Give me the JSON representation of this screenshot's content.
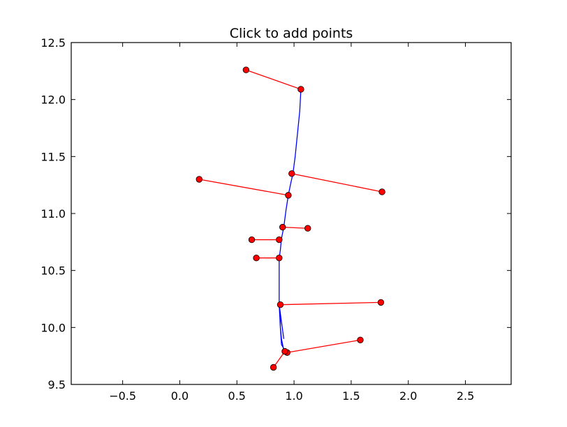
{
  "chart_data": {
    "type": "line",
    "title": "Click to add points",
    "xlabel": "",
    "ylabel": "",
    "xlim": [
      -0.95,
      2.9
    ],
    "ylim": [
      9.5,
      12.5
    ],
    "grid": false,
    "xticks": [
      -0.5,
      0.0,
      0.5,
      1.0,
      1.5,
      2.0,
      2.5
    ],
    "xtick_labels": [
      "−0.5",
      "0.0",
      "0.5",
      "1.0",
      "1.5",
      "2.0",
      "2.5"
    ],
    "yticks": [
      9.5,
      10.0,
      10.5,
      11.0,
      11.5,
      12.0,
      12.5
    ],
    "ytick_labels": [
      "9.5",
      "10.0",
      "10.5",
      "11.0",
      "11.5",
      "12.0",
      "12.5"
    ],
    "colors": {
      "curve": "#0000ff",
      "segments": "#ff0000",
      "marker_fill": "#ff0000",
      "marker_edge": "#000000"
    },
    "curve": {
      "x": [
        1.06,
        1.05,
        1.03,
        1.01,
        0.99,
        0.97,
        0.95,
        0.93,
        0.91,
        0.89,
        0.88,
        0.87,
        0.87,
        0.87,
        0.87,
        0.88,
        0.88,
        0.89,
        0.91,
        0.93,
        0.89,
        0.88,
        0.87,
        0.89,
        0.91
      ],
      "y": [
        12.09,
        11.9,
        11.7,
        11.5,
        11.35,
        11.26,
        11.16,
        11.03,
        10.88,
        10.78,
        10.68,
        10.61,
        10.45,
        10.3,
        10.2,
        10.1,
        10.0,
        9.9,
        9.8,
        9.78,
        9.85,
        10.0,
        10.2,
        10.05,
        9.9
      ]
    },
    "segments": [
      {
        "from": [
          1.06,
          12.09
        ],
        "to": [
          0.58,
          12.26
        ]
      },
      {
        "from": [
          0.98,
          11.35
        ],
        "to": [
          1.77,
          11.19
        ]
      },
      {
        "from": [
          0.95,
          11.16
        ],
        "to": [
          0.17,
          11.3
        ]
      },
      {
        "from": [
          0.9,
          10.88
        ],
        "to": [
          1.12,
          10.87
        ]
      },
      {
        "from": [
          0.87,
          10.77
        ],
        "to": [
          0.63,
          10.77
        ]
      },
      {
        "from": [
          0.87,
          10.61
        ],
        "to": [
          0.67,
          10.61
        ]
      },
      {
        "from": [
          0.88,
          10.2
        ],
        "to": [
          1.76,
          10.22
        ]
      },
      {
        "from": [
          0.94,
          9.78
        ],
        "to": [
          1.58,
          9.89
        ]
      },
      {
        "from": [
          0.92,
          9.79
        ],
        "to": [
          0.82,
          9.65
        ]
      }
    ]
  }
}
